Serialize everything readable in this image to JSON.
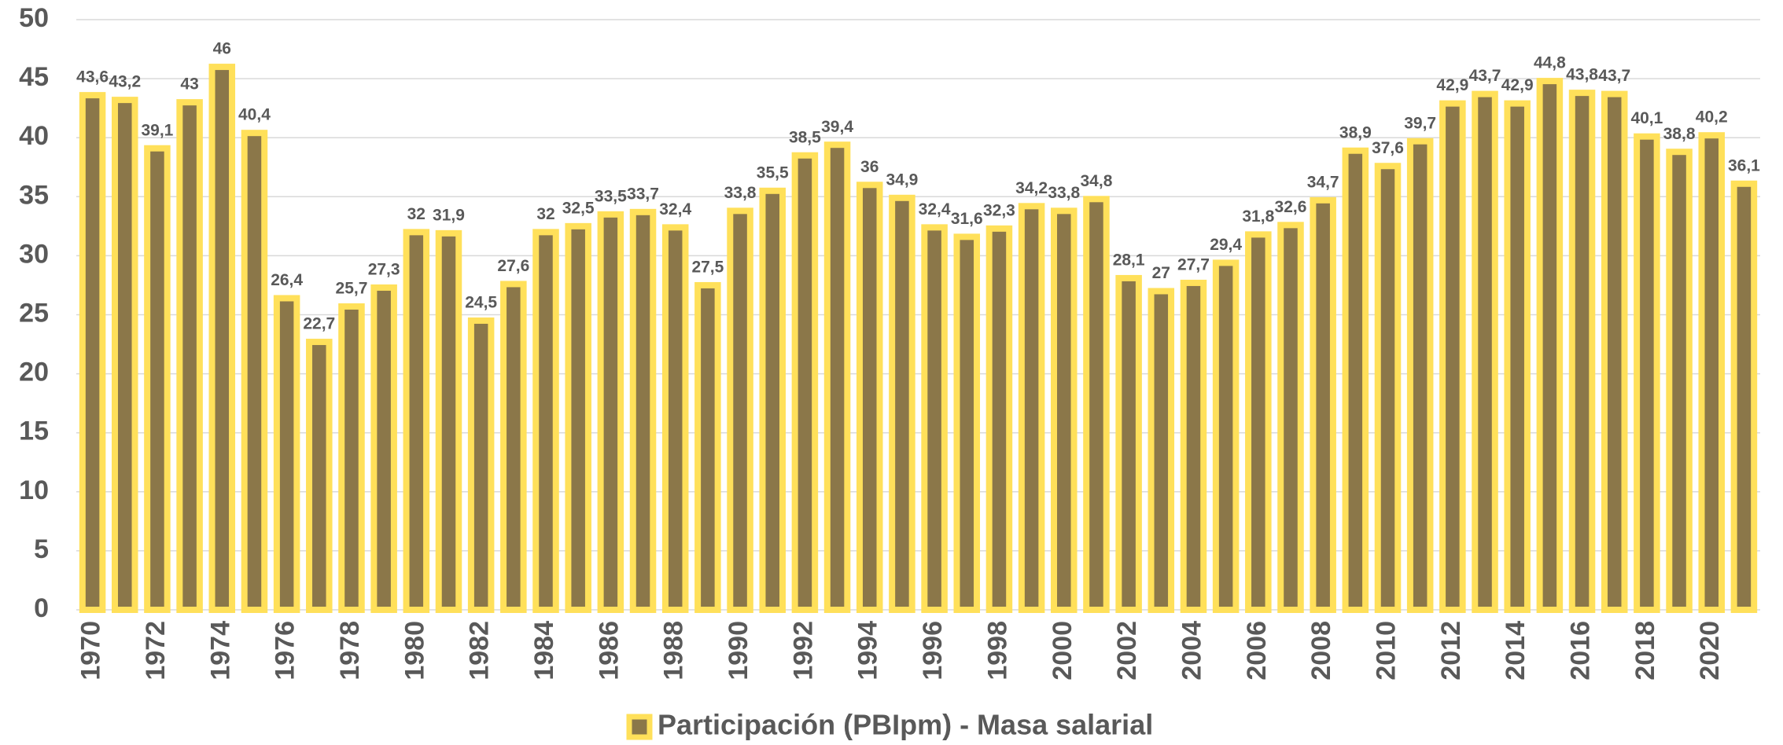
{
  "chart_data": {
    "type": "bar",
    "categories": [
      "1970",
      null,
      "1972",
      null,
      "1974",
      null,
      "1976",
      null,
      "1978",
      null,
      "1980",
      null,
      "1982",
      null,
      "1984",
      null,
      "1986",
      null,
      "1988",
      null,
      "1990",
      null,
      "1992",
      null,
      "1994",
      null,
      "1996",
      null,
      "1998",
      null,
      "2000",
      null,
      "2002",
      null,
      "2004",
      null,
      "2006",
      null,
      "2008",
      null,
      "2010",
      null,
      "2012",
      null,
      "2014",
      null,
      "2016",
      null,
      "2018",
      null,
      "2020",
      null
    ],
    "series": [
      {
        "name": "Participación (PBIpm) - Masa salarial",
        "color": "#8b7749",
        "edge_color": "#ffe05a",
        "values": [
          43.6,
          43.2,
          39.1,
          43,
          46,
          40.4,
          26.4,
          22.7,
          25.7,
          27.3,
          32,
          31.9,
          24.5,
          27.6,
          32,
          32.5,
          33.5,
          33.7,
          32.4,
          27.5,
          33.8,
          35.5,
          38.5,
          39.4,
          36,
          34.9,
          32.4,
          31.6,
          32.3,
          34.2,
          33.8,
          34.8,
          28.1,
          27,
          27.7,
          29.4,
          31.8,
          32.6,
          34.7,
          38.9,
          37.6,
          39.7,
          42.9,
          43.7,
          42.9,
          44.8,
          43.8,
          43.7,
          40.1,
          38.8,
          40.2,
          36.1
        ],
        "value_labels": [
          "43,6",
          "43,2",
          "39,1",
          "43",
          "46",
          "40,4",
          "26,4",
          "22,7",
          "25,7",
          "27,3",
          "32",
          "31,9",
          "24,5",
          "27,6",
          "32",
          "32,5",
          "33,5",
          "33,7",
          "32,4",
          "27,5",
          "33,8",
          "35,5",
          "38,5",
          "39,4",
          "36",
          "34,9",
          "32,4",
          "31,6",
          "32,3",
          "34,2",
          "33,8",
          "34,8",
          "28,1",
          "27",
          "27,7",
          "29,4",
          "31,8",
          "32,6",
          "34,7",
          "38,9",
          "37,6",
          "39,7",
          "42,9",
          "43,7",
          "42,9",
          "44,8",
          "43,8",
          "43,7",
          "40,1",
          "38,8",
          "40,2",
          "36,1"
        ]
      }
    ],
    "ylim": [
      0,
      50
    ],
    "yticks": [
      0,
      5,
      10,
      15,
      20,
      25,
      30,
      35,
      40,
      45,
      50
    ],
    "grid": true,
    "legend": "bottom"
  }
}
